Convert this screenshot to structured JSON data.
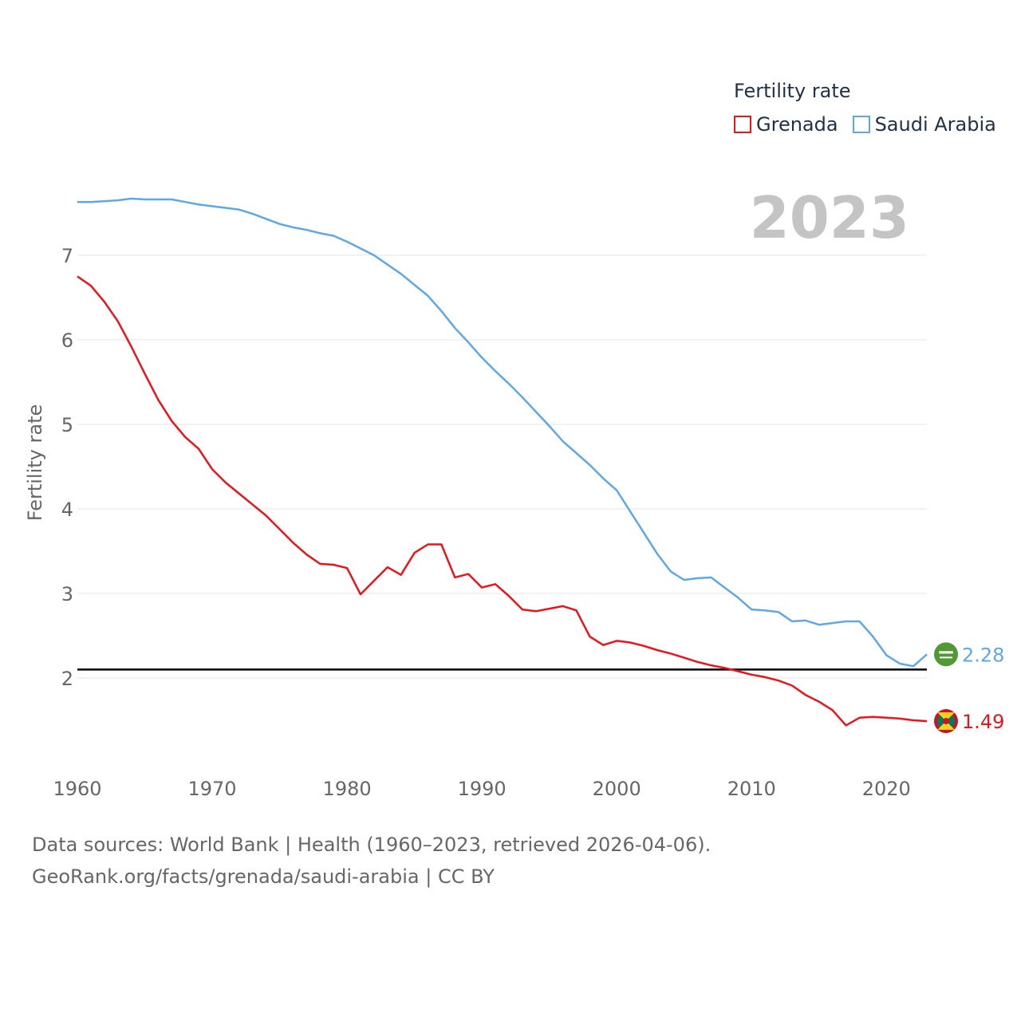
{
  "legend": {
    "title": "Fertility rate",
    "items": [
      {
        "label": "Grenada",
        "color": "#e8151b"
      },
      {
        "label": "Saudi Arabia",
        "color": "#5ea8e6"
      }
    ]
  },
  "footer": {
    "sources": "Data sources: World Bank | Health (1960–2023, retrieved 2026-04-06).",
    "link": "GeoRank.org/facts/grenada/saudi-arabia | CC BY"
  },
  "chart_data": {
    "type": "line",
    "title": "Fertility rate",
    "year_label": "2023",
    "xlabel": "",
    "ylabel": "Fertility rate",
    "xlim": [
      1960,
      2023
    ],
    "ylim": [
      1.0,
      7.7
    ],
    "x_ticks": [
      1960,
      1970,
      1980,
      1990,
      2000,
      2010,
      2020
    ],
    "y_ticks": [
      2,
      3,
      4,
      5,
      6,
      7
    ],
    "reference_line": 2.1,
    "x": [
      1960,
      1961,
      1962,
      1963,
      1964,
      1965,
      1966,
      1967,
      1968,
      1969,
      1970,
      1971,
      1972,
      1973,
      1974,
      1975,
      1976,
      1977,
      1978,
      1979,
      1980,
      1981,
      1982,
      1983,
      1984,
      1985,
      1986,
      1987,
      1988,
      1989,
      1990,
      1991,
      1992,
      1993,
      1994,
      1995,
      1996,
      1997,
      1998,
      1999,
      2000,
      2001,
      2002,
      2003,
      2004,
      2005,
      2006,
      2007,
      2008,
      2009,
      2010,
      2011,
      2012,
      2013,
      2014,
      2015,
      2016,
      2017,
      2018,
      2019,
      2020,
      2021,
      2022,
      2023
    ],
    "series": [
      {
        "name": "Grenada",
        "color": "#e8151b",
        "end_label": "1.49",
        "values": [
          6.75,
          6.64,
          6.45,
          6.22,
          5.92,
          5.6,
          5.29,
          5.04,
          4.85,
          4.71,
          4.47,
          4.31,
          4.18,
          4.05,
          3.92,
          3.76,
          3.6,
          3.46,
          3.35,
          3.34,
          3.3,
          2.99,
          3.15,
          3.31,
          3.22,
          3.48,
          3.58,
          3.58,
          3.19,
          3.23,
          3.07,
          3.11,
          2.97,
          2.81,
          2.79,
          2.82,
          2.85,
          2.8,
          2.49,
          2.39,
          2.44,
          2.42,
          2.38,
          2.33,
          2.29,
          2.24,
          2.19,
          2.15,
          2.12,
          2.08,
          2.04,
          2.01,
          1.97,
          1.91,
          1.8,
          1.72,
          1.62,
          1.44,
          1.53,
          1.54,
          1.53,
          1.52,
          1.5,
          1.49
        ]
      },
      {
        "name": "Saudi Arabia",
        "color": "#5ea8e6",
        "end_label": "2.28",
        "values": [
          7.63,
          7.63,
          7.64,
          7.65,
          7.67,
          7.66,
          7.66,
          7.66,
          7.63,
          7.6,
          7.58,
          7.56,
          7.54,
          7.49,
          7.43,
          7.37,
          7.33,
          7.3,
          7.26,
          7.23,
          7.16,
          7.08,
          7.0,
          6.89,
          6.78,
          6.65,
          6.52,
          6.34,
          6.14,
          5.97,
          5.79,
          5.63,
          5.48,
          5.32,
          5.15,
          4.98,
          4.8,
          4.66,
          4.52,
          4.36,
          4.22,
          3.97,
          3.72,
          3.47,
          3.26,
          3.16,
          3.18,
          3.19,
          3.07,
          2.95,
          2.81,
          2.8,
          2.78,
          2.67,
          2.68,
          2.63,
          2.65,
          2.67,
          2.67,
          2.49,
          2.27,
          2.17,
          2.14,
          2.28
        ]
      }
    ]
  }
}
